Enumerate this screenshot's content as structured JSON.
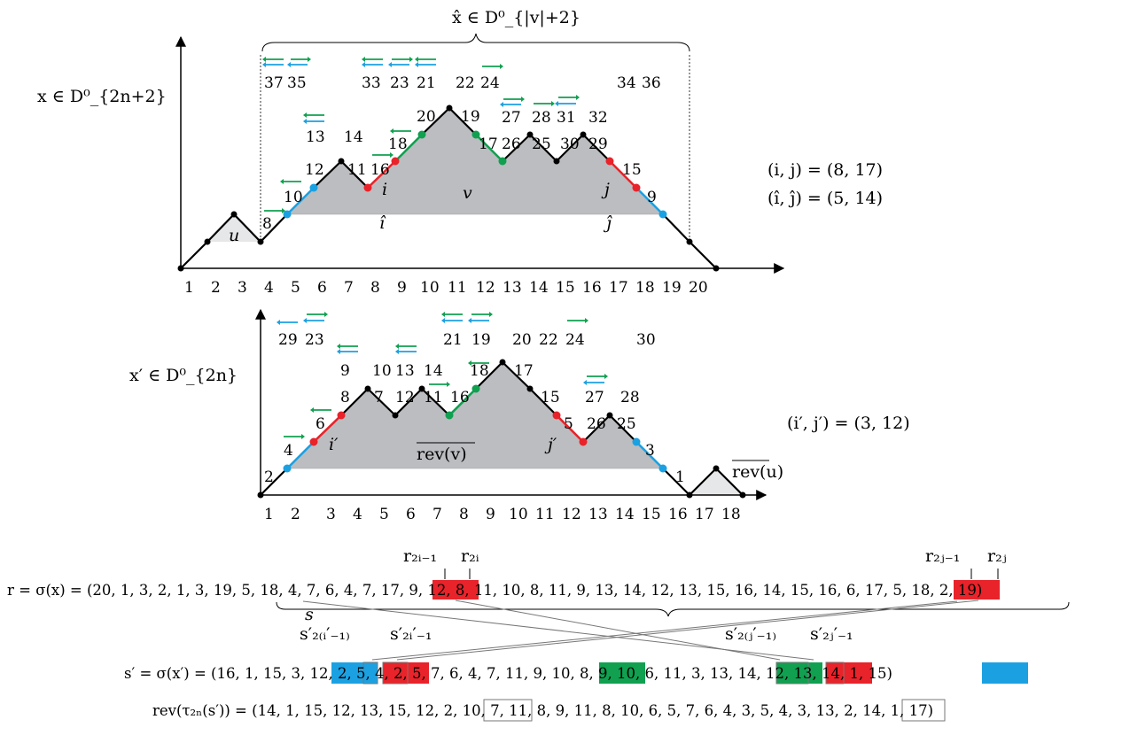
{
  "top": {
    "hat_label": "x̂ ∈ D⁰_{|v|+2}",
    "x_label": "x ∈ D⁰_{2n+2}",
    "u_label": "u",
    "v_label": "v",
    "i_label": "i",
    "j_label": "j",
    "ihat_label": "î",
    "jhat_label": "ĵ",
    "ij_eq": "(i, j) = (8, 17)",
    "ijhat_eq": "(î, ĵ) = (5, 14)",
    "axis_ticks": [
      "1",
      "2",
      "3",
      "4",
      "5",
      "6",
      "7",
      "8",
      "9",
      "10",
      "11",
      "12",
      "13",
      "14",
      "15",
      "16",
      "17",
      "18",
      "19",
      "20"
    ],
    "labels": [
      "37",
      "35",
      "33",
      "23",
      "21",
      "22",
      "24",
      "34",
      "36",
      "27",
      "28",
      "31",
      "32",
      "13",
      "14",
      "20",
      "19",
      "18",
      "17",
      "26",
      "25",
      "30",
      "29",
      "12",
      "11",
      "16",
      "15",
      "10",
      "9",
      "8"
    ]
  },
  "bottom": {
    "x_label": "x′ ∈ D⁰_{2n}",
    "i_label": "i′",
    "j_label": "j′",
    "rev_v_label": "rev(v)",
    "rev_u_label": "rev(u)",
    "ij_eq": "(i′, j′) = (3, 12)",
    "axis_ticks": [
      "1",
      "2",
      "3",
      "4",
      "5",
      "6",
      "7",
      "8",
      "9",
      "10",
      "11",
      "12",
      "13",
      "14",
      "15",
      "16",
      "17",
      "18"
    ],
    "labels": [
      "29",
      "23",
      "21",
      "19",
      "20",
      "22",
      "24",
      "30",
      "9",
      "10",
      "13",
      "14",
      "18",
      "17",
      "8",
      "7",
      "12",
      "11",
      "16",
      "15",
      "27",
      "28",
      "6",
      "5",
      "26",
      "25",
      "4",
      "3",
      "2",
      "1"
    ]
  },
  "sequences": {
    "r_prefix": "r = σ(x) = (",
    "r_values": [
      "20",
      "1",
      "3",
      "2",
      "1",
      "3",
      "19",
      "5",
      "18",
      "4",
      "7",
      "6",
      "4",
      "7",
      "17",
      "9",
      "12",
      "8",
      "11",
      "10",
      "8",
      "11",
      "9",
      "13",
      "14",
      "12",
      "13",
      "15",
      "16",
      "14",
      "15",
      "16",
      "6",
      "17",
      "5",
      "18",
      "2",
      "19"
    ],
    "s_label": "s",
    "r_2i_1": "r₂ᵢ₋₁",
    "r_2i": "r₂ᵢ",
    "r_2j_1": "r₂ⱼ₋₁",
    "r_2j": "r₂ⱼ",
    "sp_2i1_label": "s′₂₍ᵢ′₋₁₎",
    "sp_2i_label": "s′₂ᵢ′₋₁",
    "sp_2j1_label": "s′₂₍ⱼ′₋₁₎",
    "sp_2j_label": "s′₂ⱼ′₋₁",
    "sp_prefix": "s′ = σ(x′) = (",
    "sp_values": [
      "16",
      "1",
      "15",
      "3",
      "12",
      "2",
      "5",
      "4",
      "2",
      "5",
      "7",
      "6",
      "4",
      "7",
      "11",
      "9",
      "10",
      "8",
      "9",
      "10",
      "6",
      "11",
      "3",
      "13",
      "14",
      "12",
      "13",
      "14",
      "1",
      "15"
    ],
    "rev_prefix": "rev(τ₂ₙ(s′)) = (",
    "rev_values": [
      "14",
      "1",
      "15",
      "12",
      "13",
      "15",
      "12",
      "2",
      "10",
      "7",
      "11",
      "8",
      "9",
      "11",
      "8",
      "10",
      "6",
      "5",
      "7",
      "6",
      "4",
      "3",
      "5",
      "4",
      "3",
      "13",
      "2",
      "14",
      "1",
      "17"
    ]
  },
  "colors": {
    "blue": "#1ba1e2",
    "red": "#e8232a",
    "green": "#10a050",
    "gray": "#bcbdc0",
    "lightgray": "#e6e7e8"
  }
}
